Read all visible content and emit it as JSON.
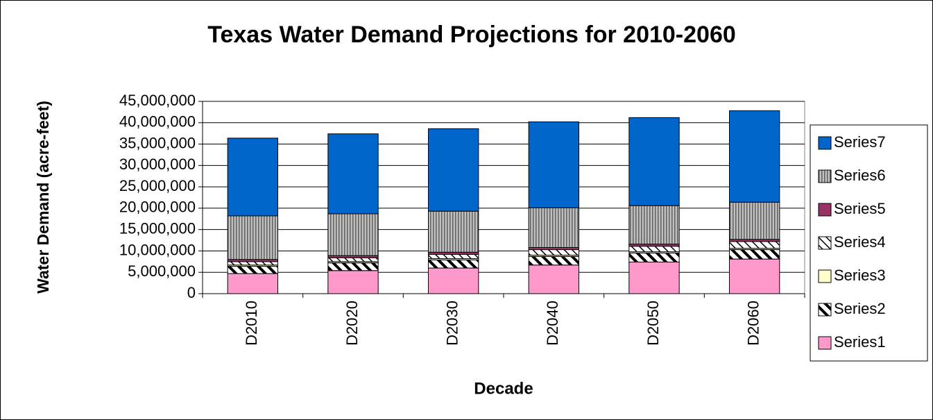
{
  "chart_data": {
    "type": "stacked-bar",
    "title": "Texas Water Demand Projections for 2010-2060",
    "x_label": "Decade",
    "y_label": "Water Demand (acre-feet)",
    "categories": [
      "D2010",
      "D2020",
      "D2030",
      "D2040",
      "D2050",
      "D2060"
    ],
    "series": [
      {
        "name": "Series1",
        "color": "#ff99cc",
        "values": [
          4700000,
          5400000,
          6000000,
          6700000,
          7400000,
          8100000
        ]
      },
      {
        "name": "Series2",
        "color": "#000000",
        "pattern": "wide-diagonal",
        "values": [
          1700000,
          1800000,
          1900000,
          2000000,
          2100000,
          2200000
        ]
      },
      {
        "name": "Series3",
        "color": "#ffffcc",
        "values": [
          300000,
          300000,
          300000,
          300000,
          300000,
          300000
        ]
      },
      {
        "name": "Series4",
        "color": "#000000",
        "pattern": "light-diagonal",
        "values": [
          800000,
          900000,
          1000000,
          1300000,
          1300000,
          1600000
        ]
      },
      {
        "name": "Series5",
        "color": "#993366",
        "values": [
          500000,
          500000,
          500000,
          500000,
          500000,
          500000
        ]
      },
      {
        "name": "Series6",
        "color": "#808080",
        "pattern": "vertical",
        "values": [
          10200000,
          9800000,
          9600000,
          9300000,
          9000000,
          8700000
        ]
      },
      {
        "name": "Series7",
        "color": "#0066cc",
        "values": [
          18200000,
          18700000,
          19300000,
          20100000,
          20600000,
          21400000
        ]
      }
    ],
    "ylim": [
      0,
      45000000
    ],
    "yticks": [
      0,
      {
        "value": 5000000,
        "label": "5,000,000"
      },
      {
        "value": 10000000,
        "label": "10,000,000"
      },
      {
        "value": 15000000,
        "label": "15,000,000"
      },
      {
        "value": 20000000,
        "label": "20,000,000"
      },
      {
        "value": 25000000,
        "label": "25,000,000"
      },
      {
        "value": 30000000,
        "label": "30,000,000"
      },
      {
        "value": 35000000,
        "label": "35,000,000"
      },
      {
        "value": 40000000,
        "label": "40,000,000"
      },
      {
        "value": 45000000,
        "label": "45,000,000"
      }
    ],
    "grid": true,
    "legend": "right"
  }
}
